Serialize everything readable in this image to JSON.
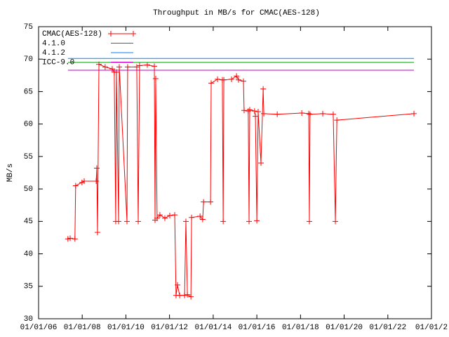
{
  "chart_data": {
    "type": "line",
    "title": "Throughput in MB/s for CMAC(AES-128)",
    "y_label": "MB/s",
    "xlim": [
      "2006-01-01",
      "2024-01-01"
    ],
    "xticks": [
      {
        "value": "2006-01-01",
        "label": "01/01/06"
      },
      {
        "value": "2008-01-01",
        "label": "01/01/08"
      },
      {
        "value": "2010-01-01",
        "label": "01/01/10"
      },
      {
        "value": "2012-01-01",
        "label": "01/01/12"
      },
      {
        "value": "2014-01-01",
        "label": "01/01/14"
      },
      {
        "value": "2016-01-01",
        "label": "01/01/16"
      },
      {
        "value": "2018-01-01",
        "label": "01/01/18"
      },
      {
        "value": "2020-01-01",
        "label": "01/01/20"
      },
      {
        "value": "2022-01-01",
        "label": "01/01/22"
      },
      {
        "value": "2024-01-01",
        "label": "01/01/2"
      }
    ],
    "ylim": [
      30,
      75
    ],
    "yticks": [
      30,
      35,
      40,
      45,
      50,
      55,
      60,
      65,
      70,
      75
    ],
    "legend": "top-left",
    "series": [
      {
        "name": "CMAC(AES-128)",
        "color": "#ff0000",
        "markers": true,
        "x": [
          "2007-05-07",
          "2007-06-13",
          "2007-09-01",
          "2007-09-13",
          "2007-12-28",
          "2008-02-03",
          "2008-08-22",
          "2008-09-01",
          "2008-09-13",
          "2008-10-07",
          "2009-01-19",
          "2009-05-17",
          "2009-06-20",
          "2009-07-15",
          "2009-07-26",
          "2009-09-01",
          "2009-09-12",
          "2010-01-19",
          "2010-01-30",
          "2010-07-02",
          "2010-07-26",
          "2010-08-18",
          "2010-12-25",
          "2011-04-22",
          "2011-05-04",
          "2011-05-15",
          "2011-06-07",
          "2011-07-24",
          "2011-10-15",
          "2012-01-05",
          "2012-03-28",
          "2012-04-19",
          "2012-05-14",
          "2012-06-18",
          "2012-09-09",
          "2012-10-01",
          "2012-10-26",
          "2012-12-24",
          "2013-01-04",
          "2013-05-26",
          "2013-07-09",
          "2013-07-23",
          "2013-11-17",
          "2013-11-28",
          "2014-03-14",
          "2014-06-03",
          "2014-06-17",
          "2014-06-28",
          "2014-11-03",
          "2015-01-26",
          "2015-02-28",
          "2015-05-22",
          "2015-06-02",
          "2015-08-10",
          "2015-08-24",
          "2015-09-04",
          "2015-11-24",
          "2015-12-08",
          "2016-01-01",
          "2016-01-23",
          "2016-03-10",
          "2016-04-16",
          "2016-04-27",
          "2016-12-07",
          "2018-01-22",
          "2018-05-18",
          "2018-05-29",
          "2018-06-09",
          "2019-01-08",
          "2019-07-02",
          "2019-08-07",
          "2019-09-01",
          "2023-03-14"
        ],
        "values": [
          42.3,
          42.4,
          42.3,
          50.5,
          51.0,
          51.2,
          51.2,
          53.2,
          43.3,
          69.2,
          68.8,
          68.5,
          68.0,
          45,
          68.0,
          45,
          68.8,
          45,
          68.8,
          68.8,
          45,
          69.0,
          69.1,
          68.9,
          45.2,
          67.0,
          45.5,
          46.0,
          45.5,
          45.9,
          46.0,
          33.6,
          35.2,
          33.6,
          33.6,
          45,
          33.7,
          33.4,
          45.6,
          45.8,
          45.3,
          48.0,
          48.0,
          66.3,
          66.9,
          66.8,
          45,
          66.8,
          66.9,
          67.4,
          66.8,
          66.6,
          62.1,
          62.0,
          45,
          62.2,
          62.0,
          61.2,
          45.1,
          61.9,
          54,
          65.4,
          61.6,
          61.5,
          61.7,
          61.6,
          45,
          61.5,
          61.6,
          61.5,
          45,
          60.6,
          61.6
        ]
      },
      {
        "name": "4.1.0",
        "color": "#00a000",
        "x": [
          "2007-05-07",
          "2023-03-14"
        ],
        "values": [
          69.5,
          69.5
        ]
      },
      {
        "name": "4.1.2",
        "color": "#0080ff",
        "x": [
          "2007-05-07",
          "2023-03-14"
        ],
        "values": [
          70.1,
          70.1
        ]
      },
      {
        "name": "ICC-9.0",
        "color": "#c000c0",
        "x": [
          "2007-05-07",
          "2023-03-14"
        ],
        "values": [
          68.3,
          68.3
        ]
      }
    ]
  }
}
